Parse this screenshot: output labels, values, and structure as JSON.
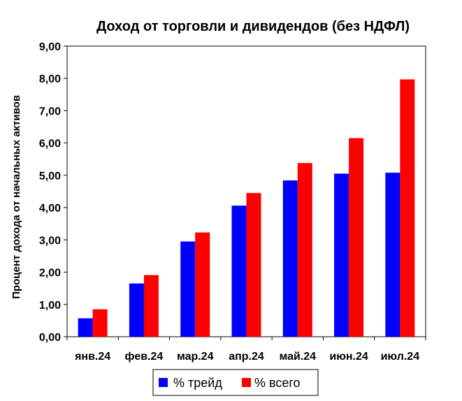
{
  "chart_data": {
    "type": "bar",
    "title": "Доход от торговли и дивидендов (без НДФЛ)",
    "ylabel": "Процент дохода от начальных активов",
    "xlabel": "",
    "categories": [
      "янв.24",
      "фев.24",
      "мар.24",
      "апр.24",
      "май.24",
      "июн.24",
      "июл.24"
    ],
    "series": [
      {
        "name": "% трейд",
        "color": "#0000ff",
        "values": [
          0.57,
          1.65,
          2.95,
          4.06,
          4.84,
          5.05,
          5.08
        ]
      },
      {
        "name": "% всего",
        "color": "#ff0000",
        "values": [
          0.85,
          1.91,
          3.23,
          4.45,
          5.38,
          6.15,
          7.97
        ]
      }
    ],
    "ylim": [
      0,
      9
    ],
    "yticks": [
      "0,00",
      "1,00",
      "2,00",
      "3,00",
      "4,00",
      "5,00",
      "6,00",
      "7,00",
      "8,00",
      "9,00"
    ],
    "grid": false,
    "legend": "bottom"
  }
}
